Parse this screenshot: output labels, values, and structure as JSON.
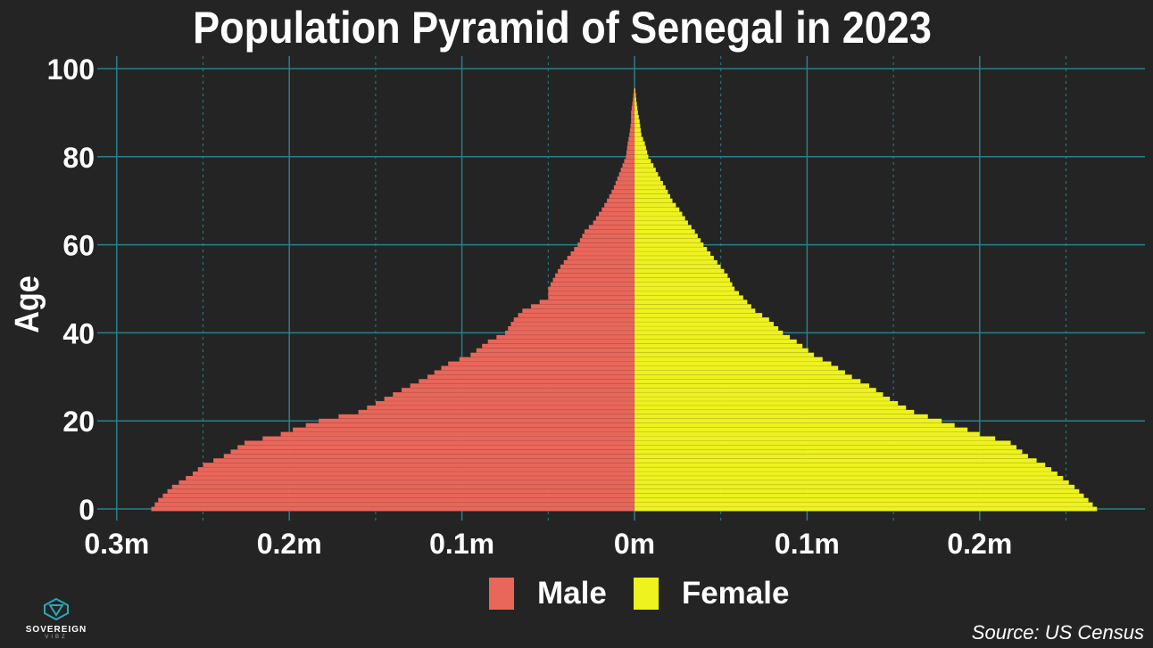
{
  "chart_data": {
    "type": "bar",
    "title": "Population Pyramid of Senegal in 2023",
    "ylabel": "Age",
    "xlabel": "",
    "ylim": [
      0,
      100
    ],
    "xlim_millions": [
      -0.3,
      0.3
    ],
    "y_ticks": [
      "0",
      "20",
      "40",
      "60",
      "80",
      "100"
    ],
    "x_tick_labels": [
      "0.3m",
      "0.2m",
      "0.1m",
      "0m",
      "0.1m",
      "0.2m"
    ],
    "x_tick_values_millions": [
      -0.3,
      -0.2,
      -0.1,
      0,
      0.1,
      0.2
    ],
    "grid": true,
    "legend_position": "bottom",
    "age_range": [
      0,
      95
    ],
    "series": [
      {
        "name": "Male",
        "color": "#e8675a",
        "anchor_ages": [
          0,
          2,
          5,
          8,
          10,
          12,
          15,
          17,
          18,
          20,
          22,
          25,
          28,
          30,
          33,
          35,
          38,
          40,
          43,
          45,
          48,
          50,
          53,
          55,
          58,
          60,
          63,
          65,
          68,
          70,
          73,
          75,
          78,
          80,
          83,
          85,
          88,
          90,
          93,
          95
        ],
        "anchor_values_millions": [
          -0.28,
          -0.276,
          -0.268,
          -0.256,
          -0.25,
          -0.238,
          -0.226,
          -0.205,
          -0.198,
          -0.183,
          -0.16,
          -0.145,
          -0.13,
          -0.12,
          -0.108,
          -0.095,
          -0.085,
          -0.075,
          -0.07,
          -0.065,
          -0.05,
          -0.05,
          -0.046,
          -0.043,
          -0.037,
          -0.033,
          -0.029,
          -0.024,
          -0.019,
          -0.016,
          -0.012,
          -0.01,
          -0.007,
          -0.005,
          -0.004,
          -0.003,
          -0.002,
          -0.002,
          -0.001,
          -0.0005
        ]
      },
      {
        "name": "Female",
        "color": "#eef21f",
        "anchor_ages": [
          0,
          2,
          5,
          8,
          10,
          12,
          15,
          17,
          18,
          20,
          22,
          25,
          28,
          30,
          33,
          35,
          38,
          40,
          43,
          45,
          48,
          50,
          53,
          55,
          58,
          60,
          63,
          65,
          68,
          70,
          73,
          75,
          78,
          80,
          83,
          85,
          88,
          90,
          93,
          95
        ],
        "anchor_values_millions": [
          0.268,
          0.263,
          0.255,
          0.245,
          0.238,
          0.228,
          0.218,
          0.2,
          0.193,
          0.178,
          0.162,
          0.148,
          0.136,
          0.126,
          0.114,
          0.104,
          0.094,
          0.086,
          0.078,
          0.07,
          0.063,
          0.058,
          0.054,
          0.05,
          0.044,
          0.04,
          0.035,
          0.031,
          0.026,
          0.022,
          0.018,
          0.015,
          0.011,
          0.008,
          0.006,
          0.004,
          0.003,
          0.002,
          0.001,
          0.0005
        ]
      }
    ]
  },
  "legend": {
    "male_label": "Male",
    "female_label": "Female"
  },
  "source": "Source: US Census",
  "logo": {
    "word": "SOVEREIGN",
    "sub": "VIBZ"
  },
  "colors": {
    "background": "#242424",
    "grid": "#2a7f8a"
  }
}
